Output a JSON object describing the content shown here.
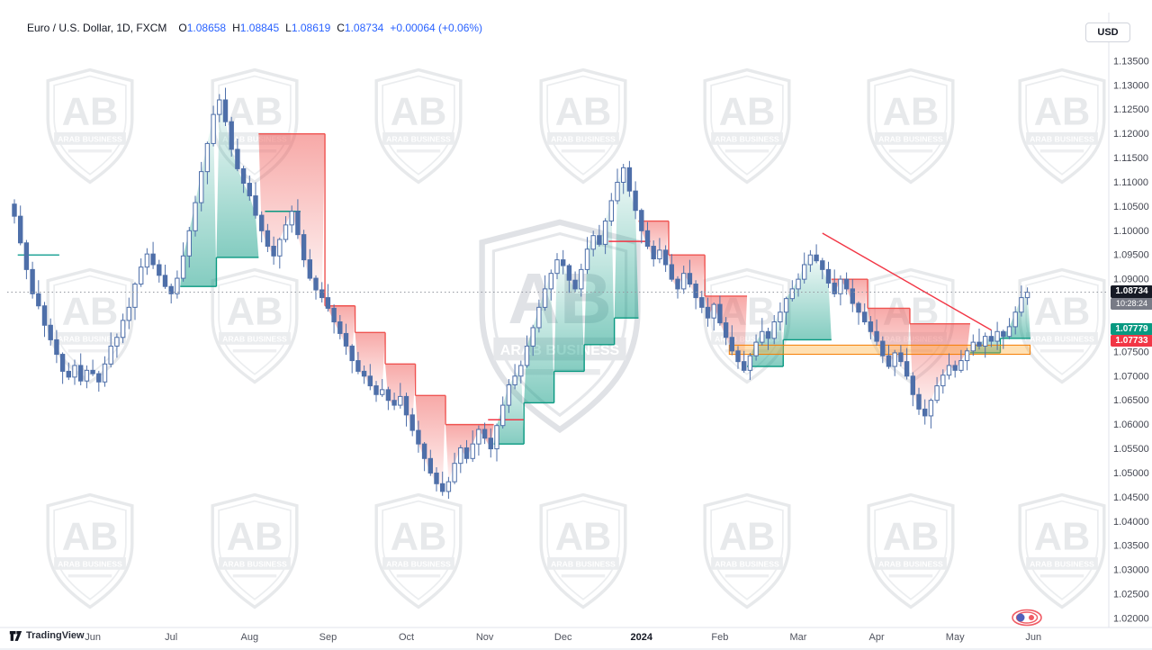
{
  "header": {
    "symbol_title": "Euro / U.S. Dollar, 1D, FXCM",
    "ohlc": {
      "open_label": "O",
      "open": "1.08658",
      "high_label": "H",
      "high": "1.08845",
      "low_label": "L",
      "low": "1.08619",
      "close_label": "C",
      "close": "1.08734",
      "change": "+0.00064 (+0.06%)"
    },
    "currency_button_label": "USD"
  },
  "watermark": {
    "monogram": "AB",
    "banner": "ARAB BUSINESS"
  },
  "footer": {
    "brand": "TradingView"
  },
  "price_tags": {
    "last": {
      "value": "1.08734",
      "price": 1.08734,
      "countdown": "10:28:24",
      "bg": "#161a25",
      "countdown_bg": "#787b86"
    },
    "upper": {
      "value": "1.07779",
      "price": 1.07779,
      "bg": "#089981"
    },
    "lower": {
      "value": "1.07733",
      "price": 1.07733,
      "bg": "#f23645"
    }
  },
  "price_axis": {
    "labels": [
      "1.13500",
      "1.13000",
      "1.12500",
      "1.12000",
      "1.11500",
      "1.11000",
      "1.10500",
      "1.10000",
      "1.09500",
      "1.09000",
      "1.08500",
      "1.08000",
      "1.07500",
      "1.07000",
      "1.06500",
      "1.06000",
      "1.05500",
      "1.05000",
      "1.04500",
      "1.04000",
      "1.03500",
      "1.03000",
      "1.02500",
      "1.02000"
    ]
  },
  "time_axis": {
    "labels": [
      {
        "text": "Jun",
        "index": 13
      },
      {
        "text": "Jul",
        "index": 26
      },
      {
        "text": "Aug",
        "index": 39
      },
      {
        "text": "Sep",
        "index": 52
      },
      {
        "text": "Oct",
        "index": 65
      },
      {
        "text": "Nov",
        "index": 78
      },
      {
        "text": "Dec",
        "index": 91
      },
      {
        "text": "2024",
        "index": 104,
        "bold": true
      },
      {
        "text": "Feb",
        "index": 117
      },
      {
        "text": "Mar",
        "index": 130
      },
      {
        "text": "Apr",
        "index": 143
      },
      {
        "text": "May",
        "index": 156
      },
      {
        "text": "Jun",
        "index": 169
      }
    ]
  },
  "chart_data": {
    "type": "candlestick",
    "title": "Euro / U.S. Dollar, 1D, FXCM",
    "pair": "EUR/USD",
    "interval": "1D",
    "exchange": "FXCM",
    "last": {
      "open": 1.08658,
      "high": 1.08845,
      "low": 1.08619,
      "close": 1.08734,
      "change": 0.00064,
      "change_pct": 0.06
    },
    "price_range": {
      "min": 1.02,
      "max": 1.135,
      "tick": 0.005
    },
    "closes": [
      1.103,
      1.0975,
      1.092,
      1.087,
      1.0845,
      1.0805,
      1.0775,
      1.0745,
      1.071,
      1.0698,
      1.0722,
      1.069,
      1.0712,
      1.0705,
      1.0688,
      1.0725,
      1.0762,
      1.078,
      1.0815,
      1.0842,
      1.089,
      1.0925,
      1.0952,
      1.093,
      1.0908,
      1.0885,
      1.087,
      1.0902,
      1.0948,
      1.1,
      1.1058,
      1.1122,
      1.118,
      1.124,
      1.127,
      1.1225,
      1.1168,
      1.1128,
      1.1098,
      1.1072,
      1.1032,
      1.1,
      1.0968,
      1.0948,
      1.0982,
      1.1012,
      1.104,
      1.0992,
      1.094,
      1.0902,
      1.0878,
      1.0862,
      1.084,
      1.0812,
      1.0788,
      1.0762,
      1.0732,
      1.071,
      1.07,
      1.068,
      1.0662,
      1.0672,
      1.065,
      1.064,
      1.0658,
      1.062,
      1.0588,
      1.056,
      1.053,
      1.05,
      1.0478,
      1.0462,
      1.0482,
      1.052,
      1.0552,
      1.053,
      1.056,
      1.059,
      1.0572,
      1.055,
      1.0598,
      1.064,
      1.0682,
      1.07,
      1.0722,
      1.0762,
      1.08,
      1.0842,
      1.088,
      1.0912,
      1.094,
      1.0928,
      1.0898,
      1.088,
      1.092,
      1.0962,
      1.099,
      1.0972,
      1.102,
      1.1062,
      1.11,
      1.113,
      1.1082,
      1.1042,
      1.1,
      1.0968,
      1.0942,
      1.096,
      1.093,
      1.09,
      1.088,
      1.0912,
      1.089,
      1.0862,
      1.0842,
      1.082,
      1.0848,
      1.081,
      1.078,
      1.0752,
      1.073,
      1.0712,
      1.0742,
      1.077,
      1.0792,
      1.0778,
      1.0812,
      1.0832,
      1.086,
      1.088,
      1.09,
      1.093,
      1.095,
      1.0938,
      1.092,
      1.0892,
      1.087,
      1.09,
      1.088,
      1.085,
      1.0832,
      1.0812,
      1.0792,
      1.0772,
      1.0742,
      1.072,
      1.0748,
      1.073,
      1.07,
      1.0662,
      1.0632,
      1.0618,
      1.065,
      1.068,
      1.0702,
      1.0722,
      1.0712,
      1.0732,
      1.0752,
      1.077,
      1.0762,
      1.0782,
      1.0772,
      1.0792,
      1.0782,
      1.0802,
      1.0832,
      1.0862,
      1.0873
    ],
    "wick_up_pattern": [
      0.001,
      0.0022,
      0.0006,
      0.0016,
      0.0028,
      0.0008,
      0.0014,
      0.002,
      0.0004,
      0.0018,
      0.0012,
      0.0025
    ],
    "wick_dn_pattern": [
      0.0015,
      0.0005,
      0.002,
      0.001,
      0.0007,
      0.0024,
      0.0012,
      0.0018,
      0.0026,
      0.0006,
      0.0016,
      0.0009
    ],
    "colors": {
      "up_body": "#ffffff",
      "down_body": "#4e6fa9",
      "candle_border": "#4e6fa9",
      "cloud_red": "#ef5350",
      "cloud_green": "#089981",
      "zone_fill": "rgba(255,167,38,0.35)",
      "zone_border": "#f57c00",
      "trendline": "#f23645",
      "last_line": "#9598a1"
    },
    "cloud_segments": [
      {
        "from": 28,
        "to": 33,
        "value": 1.0885,
        "color": "green"
      },
      {
        "from": 34,
        "to": 40,
        "value": 1.0945,
        "color": "green"
      },
      {
        "from": 41,
        "to": 51,
        "value": 1.12,
        "color": "red"
      },
      {
        "from": 52,
        "to": 56,
        "value": 1.0845,
        "color": "red"
      },
      {
        "from": 57,
        "to": 61,
        "value": 1.079,
        "color": "red"
      },
      {
        "from": 62,
        "to": 66,
        "value": 1.0725,
        "color": "red"
      },
      {
        "from": 67,
        "to": 71,
        "value": 1.066,
        "color": "red"
      },
      {
        "from": 72,
        "to": 79,
        "value": 1.06,
        "color": "red"
      },
      {
        "from": 80,
        "to": 84,
        "value": 1.056,
        "color": "green"
      },
      {
        "from": 85,
        "to": 89,
        "value": 1.0645,
        "color": "green"
      },
      {
        "from": 90,
        "to": 94,
        "value": 1.071,
        "color": "green"
      },
      {
        "from": 95,
        "to": 99,
        "value": 1.0765,
        "color": "green"
      },
      {
        "from": 100,
        "to": 103,
        "value": 1.082,
        "color": "green"
      },
      {
        "from": 104,
        "to": 108,
        "value": 1.102,
        "color": "red"
      },
      {
        "from": 109,
        "to": 114,
        "value": 1.095,
        "color": "red"
      },
      {
        "from": 115,
        "to": 121,
        "value": 1.0865,
        "color": "red"
      },
      {
        "from": 122,
        "to": 127,
        "value": 1.072,
        "color": "green"
      },
      {
        "from": 128,
        "to": 135,
        "value": 1.0775,
        "color": "green"
      },
      {
        "from": 136,
        "to": 141,
        "value": 1.09,
        "color": "red"
      },
      {
        "from": 142,
        "to": 148,
        "value": 1.084,
        "color": "red"
      },
      {
        "from": 149,
        "to": 158,
        "value": 1.0808,
        "color": "red"
      },
      {
        "from": 159,
        "to": 163,
        "value": 1.0748,
        "color": "green"
      },
      {
        "from": 164,
        "to": 168,
        "value": 1.0778,
        "color": "green"
      }
    ],
    "support_zone": {
      "from": 119,
      "to": 168,
      "top": 1.0764,
      "bottom": 1.0745
    },
    "trendline": {
      "from": 134,
      "p1": 1.0995,
      "to": 162,
      "p2": 1.0795
    },
    "level_segments": [
      {
        "from": 1,
        "to": 7,
        "price": 1.095,
        "color": "#26a69a"
      },
      {
        "from": 42,
        "to": 47,
        "price": 1.104,
        "color": "#089981"
      },
      {
        "from": 79,
        "to": 84,
        "price": 1.061,
        "color": "#f23645"
      },
      {
        "from": 99,
        "to": 105,
        "price": 1.0978,
        "color": "#f23645"
      }
    ],
    "last_price_line": 1.08734
  }
}
